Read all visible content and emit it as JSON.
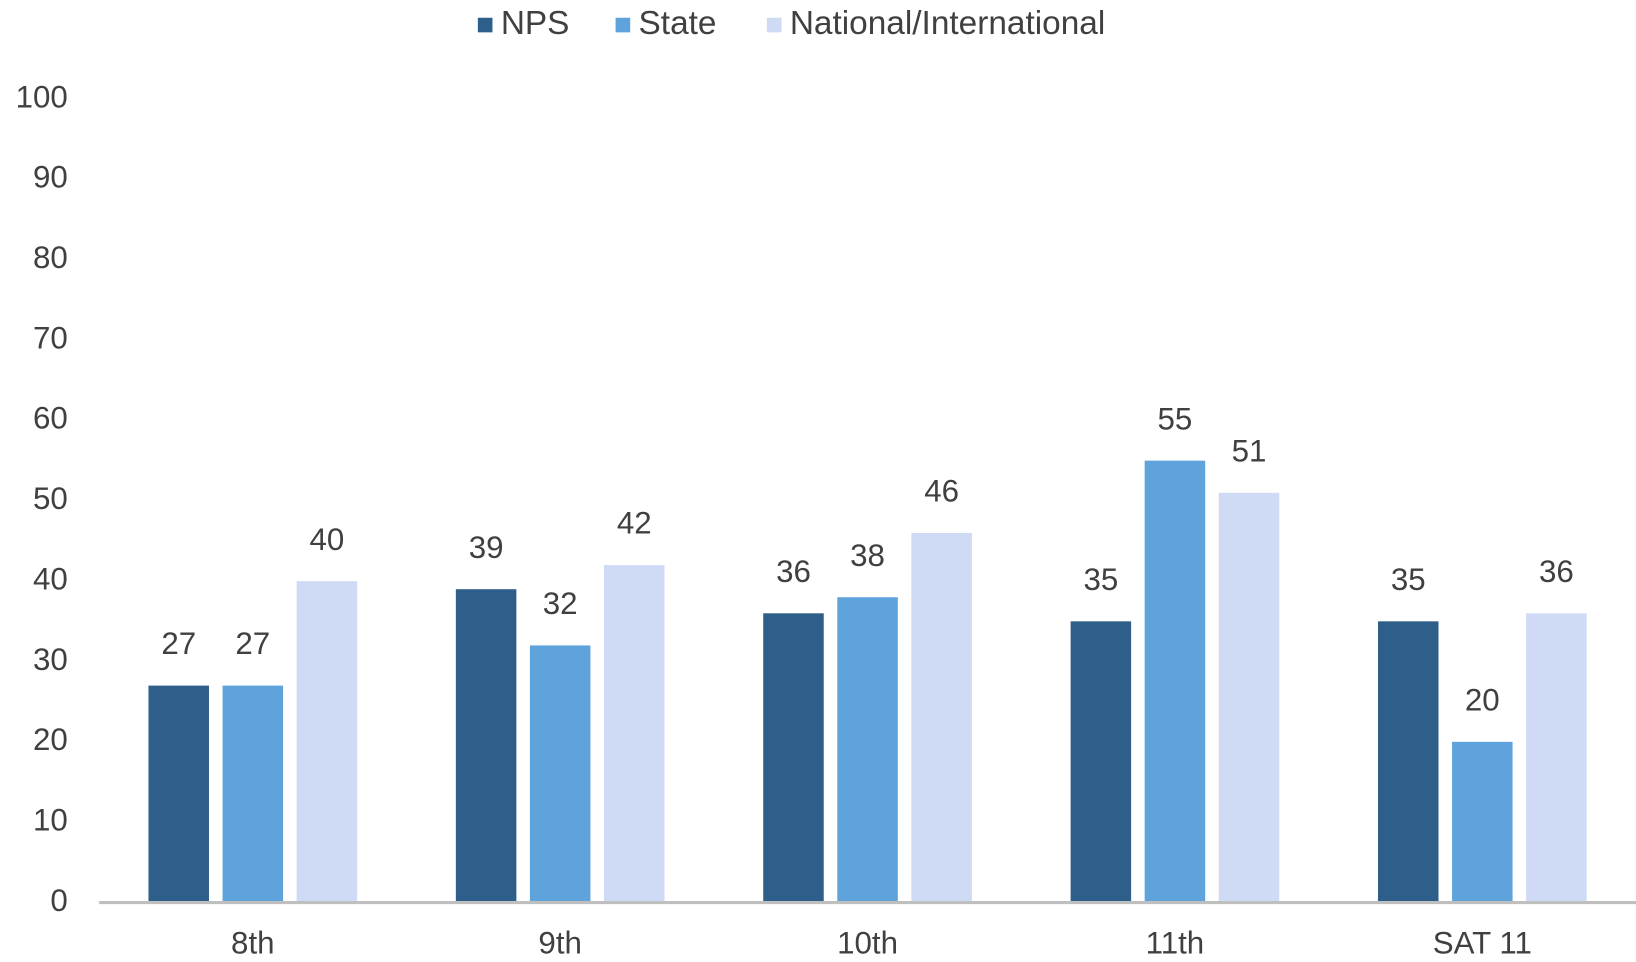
{
  "chart_data": {
    "type": "bar",
    "categories": [
      "8th",
      "9th",
      "10th",
      "11th",
      "SAT 11"
    ],
    "series": [
      {
        "name": "NPS",
        "color": "#2e5f8a",
        "values": [
          27,
          39,
          36,
          35,
          35
        ]
      },
      {
        "name": "State",
        "color": "#5ea3dc",
        "values": [
          27,
          32,
          38,
          55,
          20
        ]
      },
      {
        "name": "National/International",
        "color": "#cfdaf5",
        "values": [
          40,
          42,
          46,
          51,
          36
        ]
      }
    ],
    "ylim": [
      0,
      100
    ],
    "yticks": [
      0,
      10,
      20,
      30,
      40,
      50,
      60,
      70,
      80,
      90,
      100
    ],
    "grid": false,
    "legend": "top"
  }
}
